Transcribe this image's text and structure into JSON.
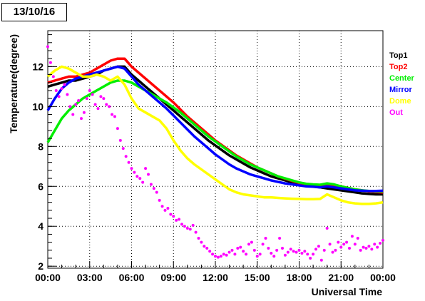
{
  "title": "13/10/16",
  "chart_data": {
    "type": "line",
    "xlabel": "Universal Time",
    "ylabel": "Temperature(degree)",
    "x_tick_labels": [
      "00:00",
      "03:00",
      "06:00",
      "09:00",
      "12:00",
      "15:00",
      "18:00",
      "21:00",
      "00:00"
    ],
    "x_ticks_hours": [
      0,
      3,
      6,
      9,
      12,
      15,
      18,
      21,
      24
    ],
    "y_ticks": [
      2,
      4,
      6,
      8,
      10,
      12
    ],
    "xlim": [
      0,
      24
    ],
    "ylim": [
      1.9,
      13.8
    ],
    "grid": true,
    "legend_position": "right",
    "series": [
      {
        "name": "Top1",
        "color": "#000000",
        "style": "line",
        "x": [
          0,
          0.5,
          1,
          1.5,
          2,
          2.5,
          3,
          3.5,
          4,
          4.5,
          5,
          5.5,
          6,
          6.5,
          7,
          7.5,
          8,
          8.5,
          9,
          9.5,
          10,
          10.5,
          11,
          11.5,
          12,
          12.5,
          13,
          13.5,
          14,
          14.5,
          15,
          15.5,
          16,
          16.5,
          17,
          17.5,
          18,
          18.5,
          19,
          19.5,
          20,
          20.5,
          21,
          21.5,
          22,
          22.5,
          23,
          23.5,
          24
        ],
        "y": [
          11.0,
          11.1,
          11.2,
          11.3,
          11.3,
          11.4,
          11.5,
          11.6,
          11.8,
          11.9,
          12.0,
          12.0,
          11.6,
          11.3,
          11.0,
          10.7,
          10.4,
          10.1,
          9.8,
          9.5,
          9.2,
          8.9,
          8.6,
          8.3,
          8.05,
          7.8,
          7.55,
          7.35,
          7.15,
          6.95,
          6.8,
          6.65,
          6.5,
          6.4,
          6.3,
          6.2,
          6.1,
          6.05,
          6.0,
          5.95,
          5.9,
          5.85,
          5.8,
          5.75,
          5.7,
          5.65,
          5.62,
          5.6,
          5.6
        ]
      },
      {
        "name": "Top2",
        "color": "#ff0000",
        "style": "line",
        "x": [
          0,
          0.5,
          1,
          1.5,
          2,
          2.5,
          3,
          3.5,
          4,
          4.5,
          5,
          5.5,
          6,
          6.5,
          7,
          7.5,
          8,
          8.5,
          9,
          9.5,
          10,
          10.5,
          11,
          11.5,
          12,
          12.5,
          13,
          13.5,
          14,
          14.5,
          15,
          15.5,
          16,
          16.5,
          17,
          17.5,
          18,
          18.5,
          19,
          19.5,
          20,
          20.5,
          21,
          21.5,
          22,
          22.5,
          23,
          23.5,
          24
        ],
        "y": [
          11.2,
          11.3,
          11.4,
          11.5,
          11.5,
          11.6,
          11.7,
          11.9,
          12.1,
          12.3,
          12.4,
          12.4,
          12.0,
          11.7,
          11.4,
          11.1,
          10.8,
          10.5,
          10.2,
          9.85,
          9.5,
          9.2,
          8.9,
          8.6,
          8.3,
          8.05,
          7.8,
          7.55,
          7.35,
          7.15,
          6.95,
          6.8,
          6.65,
          6.5,
          6.38,
          6.27,
          6.17,
          6.1,
          6.05,
          6.02,
          6.1,
          6.05,
          6.0,
          5.92,
          5.85,
          5.8,
          5.75,
          5.72,
          5.7
        ]
      },
      {
        "name": "Center",
        "color": "#00ee00",
        "style": "line",
        "x": [
          0,
          0.5,
          1,
          1.5,
          2,
          2.5,
          3,
          3.5,
          4,
          4.5,
          5,
          5.5,
          6,
          6.5,
          7,
          7.5,
          8,
          8.5,
          9,
          9.5,
          10,
          10.5,
          11,
          11.5,
          12,
          12.5,
          13,
          13.5,
          14,
          14.5,
          15,
          15.5,
          16,
          16.5,
          17,
          17.5,
          18,
          18.5,
          19,
          19.5,
          20,
          20.5,
          21,
          21.5,
          22,
          22.5,
          23,
          23.5,
          24
        ],
        "y": [
          8.2,
          8.8,
          9.4,
          9.8,
          10.1,
          10.4,
          10.6,
          10.8,
          11.0,
          11.2,
          11.3,
          11.3,
          11.2,
          11.0,
          10.8,
          10.6,
          10.4,
          10.2,
          9.95,
          9.7,
          9.4,
          9.1,
          8.8,
          8.5,
          8.25,
          8.0,
          7.75,
          7.5,
          7.3,
          7.1,
          6.95,
          6.8,
          6.65,
          6.5,
          6.4,
          6.3,
          6.2,
          6.13,
          6.1,
          6.08,
          6.15,
          6.1,
          6.0,
          5.92,
          5.85,
          5.8,
          5.77,
          5.75,
          5.75
        ]
      },
      {
        "name": "Mirror",
        "color": "#0000ff",
        "style": "line",
        "x": [
          0,
          0.5,
          1,
          1.5,
          2,
          2.5,
          3,
          3.5,
          4,
          4.5,
          5,
          5.5,
          6,
          6.5,
          7,
          7.5,
          8,
          8.5,
          9,
          9.5,
          10,
          10.5,
          11,
          11.5,
          12,
          12.5,
          13,
          13.5,
          14,
          14.5,
          15,
          15.5,
          16,
          16.5,
          17,
          17.5,
          18,
          18.5,
          19,
          19.5,
          20,
          20.5,
          21,
          21.5,
          22,
          22.5,
          23,
          23.5,
          24
        ],
        "y": [
          9.8,
          10.4,
          10.9,
          11.2,
          11.4,
          11.5,
          11.6,
          11.7,
          11.8,
          11.9,
          12.0,
          11.9,
          11.5,
          11.1,
          10.8,
          10.5,
          10.2,
          9.9,
          9.55,
          9.2,
          8.85,
          8.5,
          8.2,
          7.9,
          7.6,
          7.35,
          7.1,
          6.9,
          6.75,
          6.6,
          6.5,
          6.4,
          6.3,
          6.22,
          6.15,
          6.1,
          6.05,
          6.0,
          5.98,
          5.95,
          6.0,
          5.95,
          5.9,
          5.85,
          5.8,
          5.78,
          5.77,
          5.77,
          5.78
        ]
      },
      {
        "name": "Dome",
        "color": "#ffff00",
        "style": "line",
        "x": [
          0,
          0.5,
          1,
          1.5,
          2,
          2.5,
          3,
          3.5,
          4,
          4.5,
          5,
          5.5,
          6,
          6.5,
          7,
          7.5,
          8,
          8.5,
          9,
          9.5,
          10,
          10.5,
          11,
          11.5,
          12,
          12.5,
          13,
          13.5,
          14,
          14.5,
          15,
          15.5,
          16,
          16.5,
          17,
          17.5,
          18,
          18.5,
          19,
          19.5,
          20,
          20.5,
          21,
          21.5,
          22,
          22.5,
          23,
          23.5,
          24
        ],
        "y": [
          11.5,
          11.8,
          12.0,
          11.9,
          11.7,
          11.5,
          11.5,
          11.6,
          11.5,
          11.3,
          11.5,
          11.1,
          10.4,
          9.9,
          9.7,
          9.5,
          9.3,
          8.9,
          8.3,
          7.8,
          7.4,
          7.1,
          6.85,
          6.6,
          6.35,
          6.1,
          5.85,
          5.7,
          5.6,
          5.55,
          5.5,
          5.45,
          5.45,
          5.42,
          5.4,
          5.38,
          5.37,
          5.36,
          5.36,
          5.37,
          5.6,
          5.45,
          5.3,
          5.2,
          5.15,
          5.12,
          5.12,
          5.15,
          5.2
        ]
      },
      {
        "name": "Out",
        "color": "#ff00ff",
        "style": "markers",
        "x": [
          0,
          0.2,
          0.4,
          0.6,
          0.8,
          1,
          1.2,
          1.4,
          1.6,
          1.8,
          2,
          2.2,
          2.4,
          2.6,
          2.8,
          3,
          3.2,
          3.4,
          3.6,
          3.8,
          4,
          4.2,
          4.4,
          4.6,
          4.8,
          5,
          5.2,
          5.4,
          5.6,
          5.8,
          6,
          6.2,
          6.4,
          6.6,
          6.8,
          7,
          7.2,
          7.4,
          7.6,
          7.8,
          8,
          8.2,
          8.4,
          8.6,
          8.8,
          9,
          9.2,
          9.4,
          9.6,
          9.8,
          10,
          10.2,
          10.4,
          10.6,
          10.8,
          11,
          11.2,
          11.4,
          11.6,
          11.8,
          12,
          12.2,
          12.4,
          12.6,
          12.8,
          13,
          13.2,
          13.4,
          13.6,
          13.8,
          14,
          14.2,
          14.4,
          14.6,
          14.8,
          15,
          15.2,
          15.4,
          15.6,
          15.8,
          16,
          16.2,
          16.4,
          16.6,
          16.8,
          17,
          17.2,
          17.4,
          17.6,
          17.8,
          18,
          18.2,
          18.4,
          18.6,
          18.8,
          19,
          19.2,
          19.4,
          19.6,
          19.8,
          20,
          20.2,
          20.4,
          20.6,
          20.8,
          21,
          21.2,
          21.4,
          21.6,
          21.8,
          22,
          22.2,
          22.4,
          22.6,
          22.8,
          23,
          23.2,
          23.4,
          23.6,
          23.8,
          24
        ],
        "y": [
          13.0,
          12.2,
          11.5,
          10.8,
          10.5,
          10.9,
          11.1,
          10.6,
          10.0,
          9.6,
          10.1,
          10.3,
          9.4,
          9.7,
          10.4,
          10.8,
          10.6,
          10.1,
          9.9,
          10.5,
          10.4,
          10.1,
          10.0,
          9.6,
          9.5,
          8.9,
          8.3,
          7.9,
          7.5,
          7.2,
          6.9,
          6.7,
          6.5,
          6.4,
          6.2,
          6.9,
          6.6,
          6.1,
          5.9,
          5.7,
          5.3,
          5.0,
          4.8,
          4.9,
          4.6,
          4.5,
          4.3,
          4.35,
          4.1,
          4.0,
          3.9,
          3.85,
          4.05,
          3.7,
          3.4,
          3.2,
          3.0,
          2.9,
          2.75,
          2.6,
          2.5,
          2.45,
          2.5,
          2.6,
          2.55,
          2.7,
          2.8,
          2.6,
          2.9,
          2.95,
          2.75,
          2.6,
          3.1,
          3.2,
          2.8,
          2.5,
          2.6,
          3.1,
          3.4,
          2.9,
          2.65,
          2.5,
          2.8,
          3.4,
          2.9,
          2.55,
          2.7,
          2.85,
          2.75,
          2.7,
          2.8,
          2.65,
          2.75,
          2.6,
          2.4,
          2.6,
          2.85,
          3.0,
          2.3,
          2.8,
          3.9,
          3.1,
          2.7,
          2.8,
          3.2,
          2.95,
          3.1,
          3.2,
          2.9,
          3.5,
          3.1,
          3.4,
          2.8,
          2.95,
          2.9,
          3.0,
          2.85,
          3.1,
          2.95,
          3.15,
          3.3
        ]
      }
    ]
  }
}
